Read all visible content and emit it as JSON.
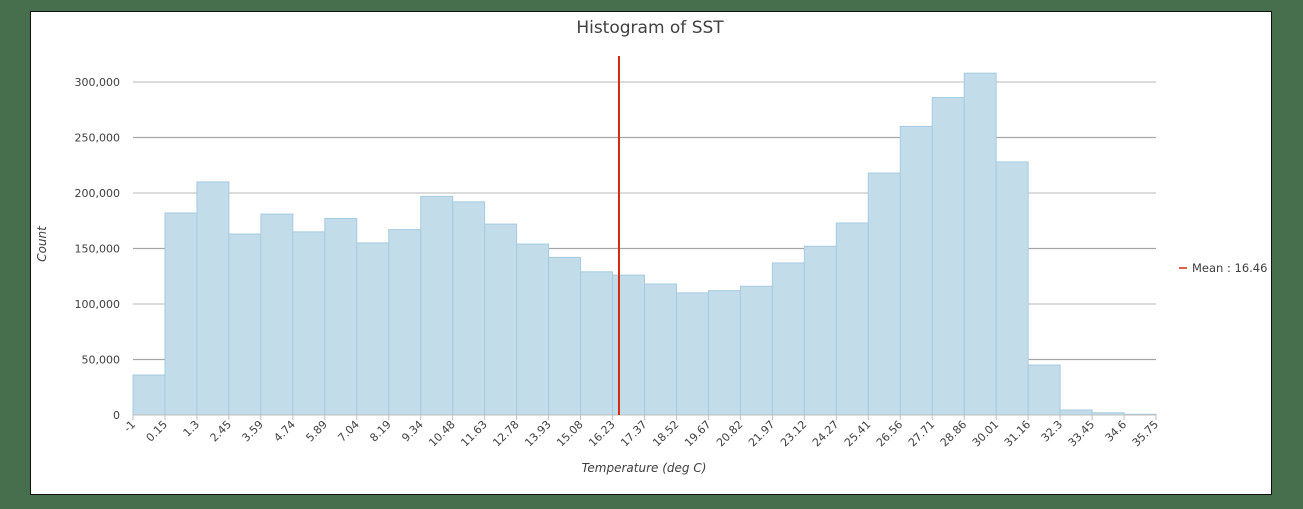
{
  "chart_data": {
    "type": "bar",
    "subtype": "histogram",
    "title": "Histogram of SST",
    "xlabel": "Temperature (deg C)",
    "ylabel": "Count",
    "ylim": [
      0,
      300000
    ],
    "y_ticks": [
      0,
      50000,
      100000,
      150000,
      200000,
      250000,
      300000
    ],
    "y_tick_labels": [
      "0",
      "50,000",
      "100,000",
      "150,000",
      "200,000",
      "250,000",
      "300,000"
    ],
    "x_tick_labels": [
      "-1",
      "0.15",
      "1.3",
      "2.45",
      "3.59",
      "4.74",
      "5.89",
      "7.04",
      "8.19",
      "9.34",
      "10.48",
      "11.63",
      "12.78",
      "13.93",
      "15.08",
      "16.23",
      "17.37",
      "18.52",
      "19.67",
      "20.82",
      "21.97",
      "23.12",
      "24.27",
      "25.41",
      "26.56",
      "27.71",
      "28.86",
      "30.01",
      "31.16",
      "32.3",
      "33.45",
      "34.6",
      "35.75"
    ],
    "bin_edges": [
      -1,
      0.15,
      1.3,
      2.45,
      3.59,
      4.74,
      5.89,
      7.04,
      8.19,
      9.34,
      10.48,
      11.63,
      12.78,
      13.93,
      15.08,
      16.23,
      17.37,
      18.52,
      19.67,
      20.82,
      21.97,
      23.12,
      24.27,
      25.41,
      26.56,
      27.71,
      28.86,
      30.01,
      31.16,
      32.3,
      33.45,
      34.6,
      35.75
    ],
    "values": [
      36000,
      182000,
      210000,
      163000,
      181000,
      165000,
      177000,
      155000,
      167000,
      197000,
      192000,
      172000,
      154000,
      142000,
      129000,
      126000,
      118000,
      110000,
      112000,
      116000,
      137000,
      152000,
      173000,
      218000,
      260000,
      286000,
      308000,
      228000,
      45000,
      4500,
      2000,
      700
    ],
    "mean_line": {
      "value": 16.46,
      "label": "Mean : 16.46",
      "color": "#d42a10"
    },
    "bar_color": "#c2dcea",
    "bar_edge_color": "#a6cbe0",
    "grid": true,
    "legend_position": "right"
  },
  "legend": {
    "mean_label": "Mean : 16.46"
  }
}
